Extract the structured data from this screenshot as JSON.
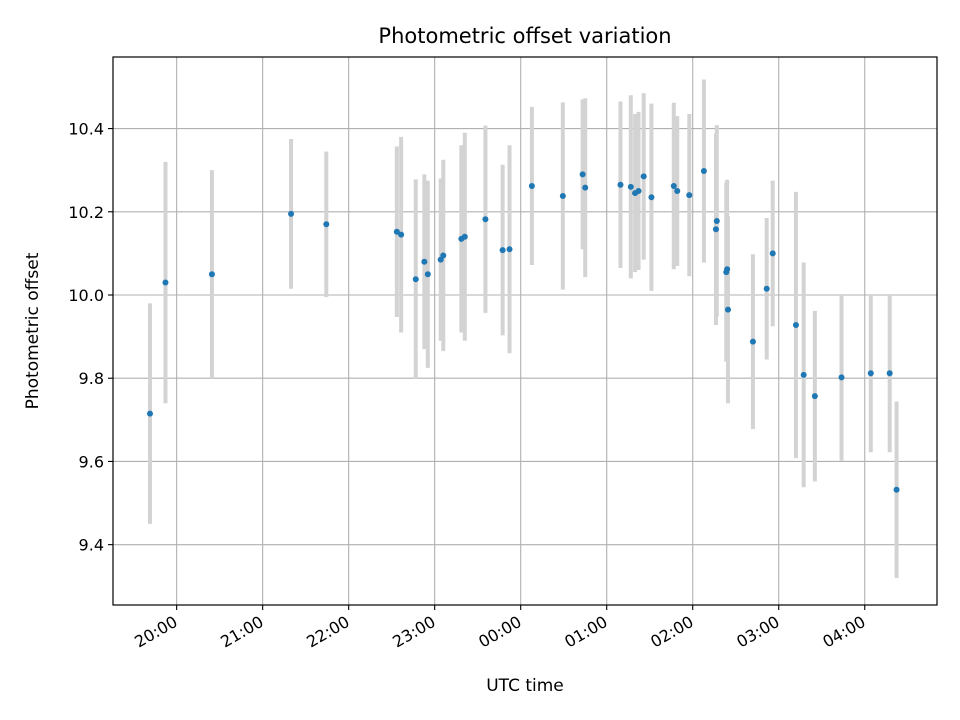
{
  "chart_data": {
    "type": "scatter",
    "title": "Photometric offset variation",
    "xlabel": "UTC time",
    "ylabel": "Photometric offset",
    "x_unit": "hours_after_midnight_utc",
    "xlim": [
      -4.74,
      4.84
    ],
    "ylim": [
      9.255,
      10.572
    ],
    "x_ticks": [
      {
        "value": -4,
        "label": "20:00"
      },
      {
        "value": -3,
        "label": "21:00"
      },
      {
        "value": -2,
        "label": "22:00"
      },
      {
        "value": -1,
        "label": "23:00"
      },
      {
        "value": 0,
        "label": "00:00"
      },
      {
        "value": 1,
        "label": "01:00"
      },
      {
        "value": 2,
        "label": "02:00"
      },
      {
        "value": 3,
        "label": "03:00"
      },
      {
        "value": 4,
        "label": "04:00"
      }
    ],
    "y_ticks": [
      {
        "value": 9.4,
        "label": "9.4"
      },
      {
        "value": 9.6,
        "label": "9.6"
      },
      {
        "value": 9.8,
        "label": "9.8"
      },
      {
        "value": 10.0,
        "label": "10.0"
      },
      {
        "value": 10.2,
        "label": "10.2"
      },
      {
        "value": 10.4,
        "label": "10.4"
      }
    ],
    "grid": true,
    "colors": {
      "point": "#1f77b4",
      "errorbar": "#d3d3d3",
      "grid": "#b0b0b0",
      "axes": "#000000"
    },
    "points": [
      {
        "x": -4.31,
        "y": 9.715,
        "err": 0.265
      },
      {
        "x": -4.13,
        "y": 10.03,
        "err": 0.29
      },
      {
        "x": -3.59,
        "y": 10.05,
        "err": 0.25
      },
      {
        "x": -2.67,
        "y": 10.195,
        "err": 0.18
      },
      {
        "x": -2.26,
        "y": 10.17,
        "err": 0.175
      },
      {
        "x": -1.44,
        "y": 10.152,
        "err": 0.205
      },
      {
        "x": -1.39,
        "y": 10.145,
        "err": 0.235
      },
      {
        "x": -1.22,
        "y": 10.038,
        "err": 0.24
      },
      {
        "x": -1.12,
        "y": 10.08,
        "err": 0.21
      },
      {
        "x": -1.08,
        "y": 10.05,
        "err": 0.225
      },
      {
        "x": -0.93,
        "y": 10.085,
        "err": 0.195
      },
      {
        "x": -0.9,
        "y": 10.095,
        "err": 0.23
      },
      {
        "x": -0.69,
        "y": 10.135,
        "err": 0.225
      },
      {
        "x": -0.65,
        "y": 10.14,
        "err": 0.25
      },
      {
        "x": -0.41,
        "y": 10.182,
        "err": 0.225
      },
      {
        "x": -0.21,
        "y": 10.108,
        "err": 0.205
      },
      {
        "x": -0.13,
        "y": 10.11,
        "err": 0.25
      },
      {
        "x": 0.13,
        "y": 10.262,
        "err": 0.19
      },
      {
        "x": 0.49,
        "y": 10.238,
        "err": 0.225
      },
      {
        "x": 0.72,
        "y": 10.29,
        "err": 0.18
      },
      {
        "x": 0.75,
        "y": 10.258,
        "err": 0.215
      },
      {
        "x": 1.16,
        "y": 10.265,
        "err": 0.2
      },
      {
        "x": 1.28,
        "y": 10.26,
        "err": 0.22
      },
      {
        "x": 1.33,
        "y": 10.245,
        "err": 0.19
      },
      {
        "x": 1.37,
        "y": 10.25,
        "err": 0.19
      },
      {
        "x": 1.43,
        "y": 10.285,
        "err": 0.2
      },
      {
        "x": 1.52,
        "y": 10.235,
        "err": 0.225
      },
      {
        "x": 1.78,
        "y": 10.262,
        "err": 0.2
      },
      {
        "x": 1.82,
        "y": 10.25,
        "err": 0.18
      },
      {
        "x": 1.96,
        "y": 10.24,
        "err": 0.195
      },
      {
        "x": 2.13,
        "y": 10.298,
        "err": 0.22
      },
      {
        "x": 2.28,
        "y": 10.178,
        "err": 0.23
      },
      {
        "x": 2.27,
        "y": 10.158,
        "err": 0.23
      },
      {
        "x": 2.4,
        "y": 10.062,
        "err": 0.215
      },
      {
        "x": 2.39,
        "y": 10.055,
        "err": 0.215
      },
      {
        "x": 2.41,
        "y": 9.965,
        "err": 0.225
      },
      {
        "x": 2.7,
        "y": 9.888,
        "err": 0.21
      },
      {
        "x": 2.86,
        "y": 10.015,
        "err": 0.17
      },
      {
        "x": 2.93,
        "y": 10.1,
        "err": 0.175
      },
      {
        "x": 3.2,
        "y": 9.928,
        "err": 0.32
      },
      {
        "x": 3.29,
        "y": 9.808,
        "err": 0.27
      },
      {
        "x": 3.42,
        "y": 9.757,
        "err": 0.205
      },
      {
        "x": 3.73,
        "y": 9.802,
        "err": 0.2
      },
      {
        "x": 4.07,
        "y": 9.812,
        "err": 0.19
      },
      {
        "x": 4.29,
        "y": 9.812,
        "err": 0.19
      },
      {
        "x": 4.37,
        "y": 9.532,
        "err": 0.212
      }
    ]
  }
}
